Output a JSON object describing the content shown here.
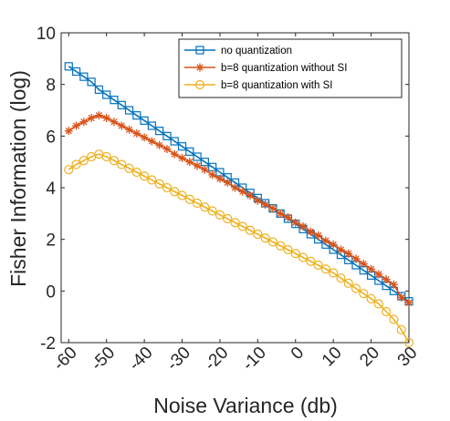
{
  "chart_data": {
    "type": "line",
    "xlabel": "Noise Variance (db)",
    "ylabel": "Fisher Information (log)",
    "xlim": [
      -62,
      30
    ],
    "ylim": [
      -2,
      10
    ],
    "xticks": [
      -60,
      -50,
      -40,
      -30,
      -20,
      -10,
      0,
      10,
      20,
      30
    ],
    "xtick_labels": [
      "-60",
      "-50",
      "-40",
      "-30",
      "-20",
      "-10",
      "0",
      "10",
      "20",
      "30"
    ],
    "yticks": [
      -2,
      0,
      2,
      4,
      6,
      8,
      10
    ],
    "ytick_labels": [
      "-2",
      "0",
      "2",
      "4",
      "6",
      "8",
      "10"
    ],
    "grid": false,
    "legend_position": "top-right",
    "x": [
      -60,
      -58,
      -56,
      -54,
      -52,
      -50,
      -48,
      -46,
      -44,
      -42,
      -40,
      -38,
      -36,
      -34,
      -32,
      -30,
      -28,
      -26,
      -24,
      -22,
      -20,
      -18,
      -16,
      -14,
      -12,
      -10,
      -8,
      -6,
      -4,
      -2,
      0,
      2,
      4,
      6,
      8,
      10,
      12,
      14,
      16,
      18,
      20,
      22,
      24,
      26,
      28,
      30
    ],
    "series": [
      {
        "name": "no quantization",
        "color": "#0072BD",
        "marker": "square",
        "values": [
          8.7,
          8.5,
          8.3,
          8.1,
          7.8,
          7.6,
          7.4,
          7.2,
          7.0,
          6.8,
          6.6,
          6.4,
          6.2,
          6.0,
          5.8,
          5.6,
          5.4,
          5.2,
          5.0,
          4.8,
          4.6,
          4.4,
          4.2,
          4.0,
          3.8,
          3.6,
          3.4,
          3.2,
          3.0,
          2.8,
          2.6,
          2.4,
          2.2,
          2.0,
          1.8,
          1.6,
          1.4,
          1.2,
          1.0,
          0.8,
          0.6,
          0.4,
          0.2,
          0.0,
          -0.2,
          -0.4
        ]
      },
      {
        "name": "b=8 quantization without SI",
        "color": "#D95319",
        "marker": "asterisk",
        "values": [
          6.2,
          6.4,
          6.55,
          6.7,
          6.8,
          6.7,
          6.55,
          6.4,
          6.25,
          6.1,
          5.95,
          5.8,
          5.65,
          5.5,
          5.3,
          5.15,
          5.0,
          4.85,
          4.7,
          4.5,
          4.35,
          4.2,
          4.0,
          3.85,
          3.7,
          3.5,
          3.35,
          3.2,
          3.0,
          2.85,
          2.65,
          2.5,
          2.3,
          2.15,
          1.95,
          1.8,
          1.6,
          1.45,
          1.25,
          1.05,
          0.85,
          0.65,
          0.45,
          0.25,
          -0.25,
          -0.45
        ]
      },
      {
        "name": "b=8 quantization with SI",
        "color": "#EDB120",
        "marker": "circle",
        "values": [
          4.7,
          4.9,
          5.05,
          5.2,
          5.3,
          5.2,
          5.05,
          4.9,
          4.75,
          4.6,
          4.45,
          4.3,
          4.15,
          4.0,
          3.85,
          3.7,
          3.55,
          3.4,
          3.25,
          3.1,
          2.95,
          2.8,
          2.65,
          2.5,
          2.35,
          2.2,
          2.05,
          1.9,
          1.75,
          1.6,
          1.45,
          1.3,
          1.15,
          1.0,
          0.85,
          0.7,
          0.5,
          0.3,
          0.1,
          -0.1,
          -0.3,
          -0.5,
          -0.8,
          -1.1,
          -1.5,
          -2.0
        ]
      }
    ]
  }
}
